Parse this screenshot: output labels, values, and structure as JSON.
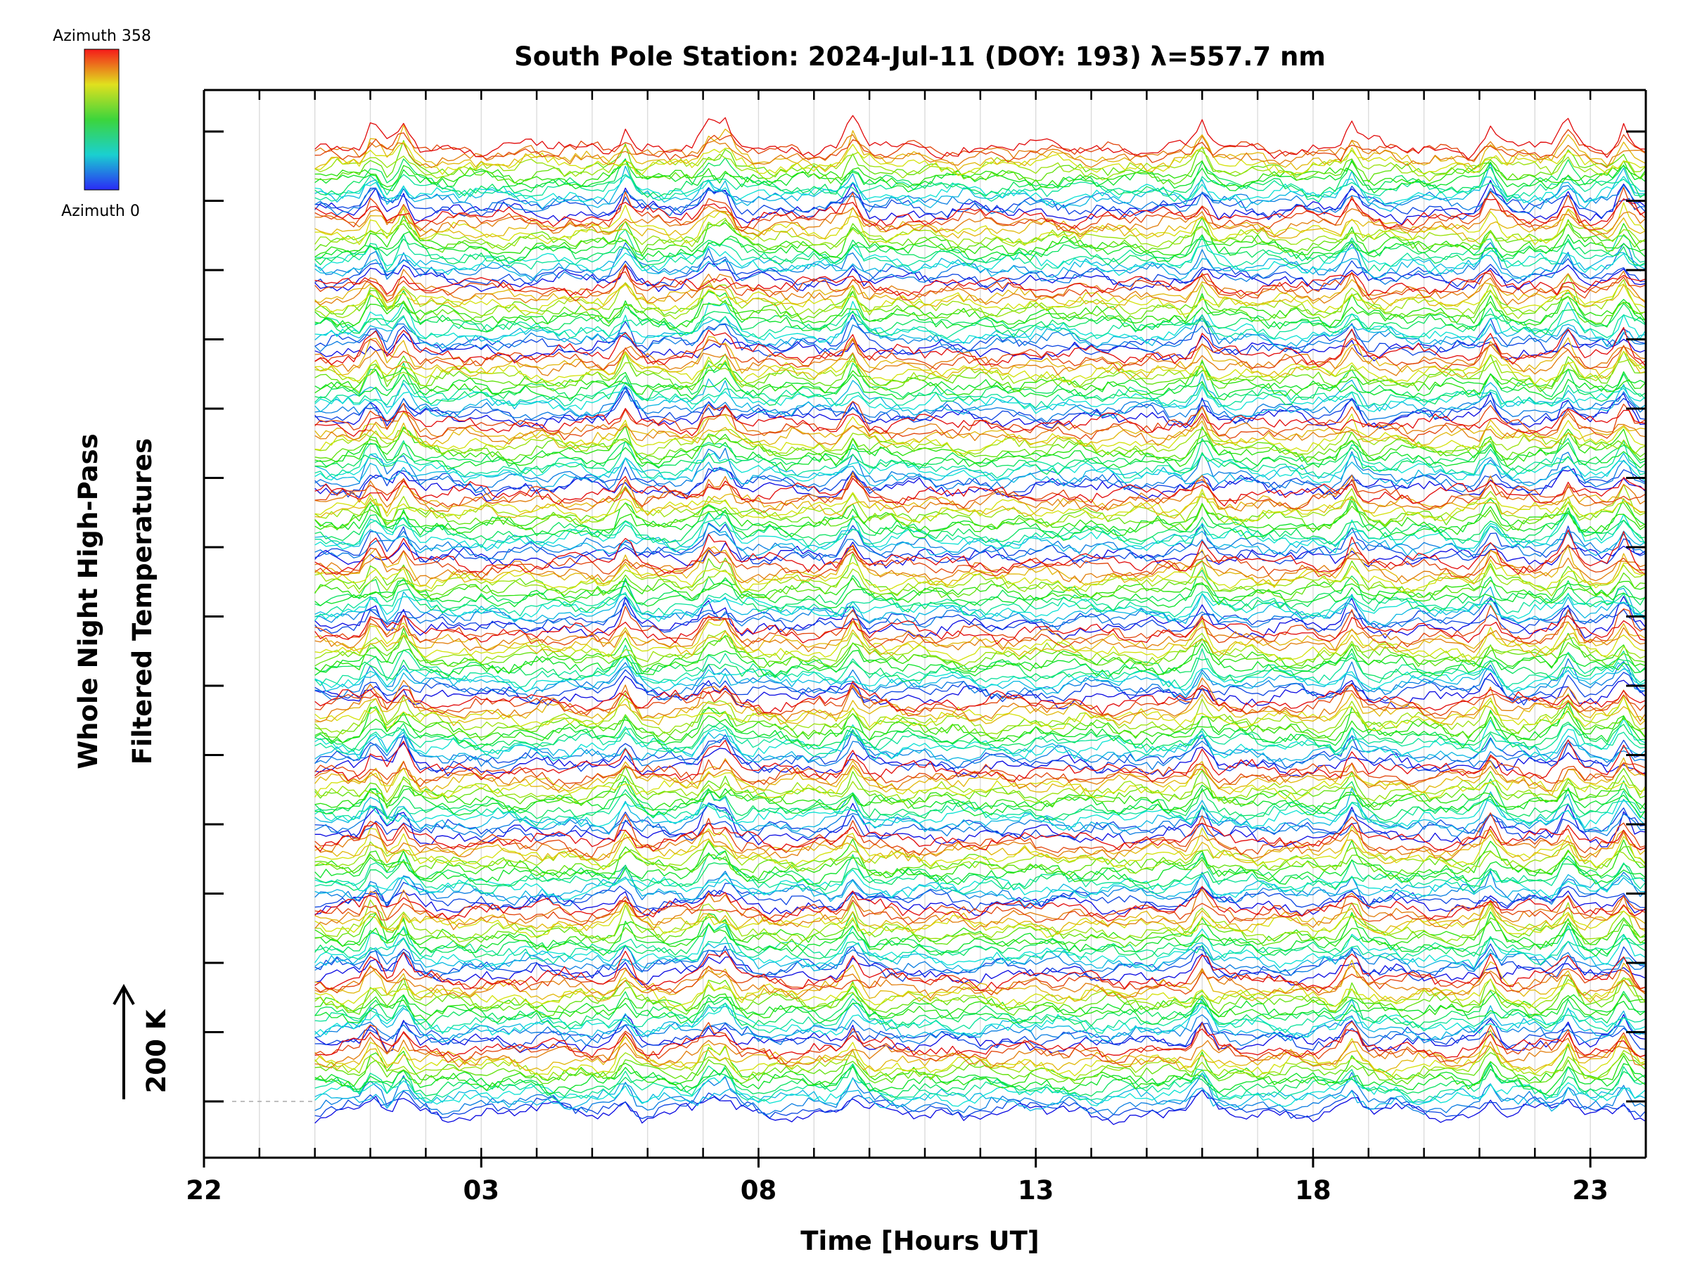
{
  "chart_data": {
    "type": "line",
    "title": "South Pole Station: 2024-Jul-11 (DOY: 193) λ=557.7 nm",
    "xlabel": "Time [Hours UT]",
    "ylabel_line1": "Whole Night High-Pass",
    "ylabel_line2": "Filtered Temperatures",
    "scale_bar_label": "200 K",
    "colorbar": {
      "label_top": "Azimuth 358",
      "label_bottom": "Azimuth 0",
      "azimuth_min": 0,
      "azimuth_max": 358,
      "colormap": "rainbow (blue to red)"
    },
    "x_tick_labels": [
      "22",
      "03",
      "08",
      "13",
      "18",
      "23"
    ],
    "x_ticks_hours_since_22UT": [
      0,
      5,
      10,
      15,
      20,
      25
    ],
    "xlim_hours_since_22UT": [
      0,
      26
    ],
    "data_start_hours_since_22UT": 2,
    "data_end_hours_since_22UT": 26,
    "stack_count": 14,
    "azimuth_bins_per_stack": 16,
    "colors": {
      "axis": "#000000",
      "gridline": "#d9d9d9",
      "baseline": "#aaaaaa"
    },
    "grid": "vertical lines at each hour",
    "note": "Stacked traces; each trace is one azimuth, colour-coded by azimuth (0 blue to 358 red)."
  }
}
